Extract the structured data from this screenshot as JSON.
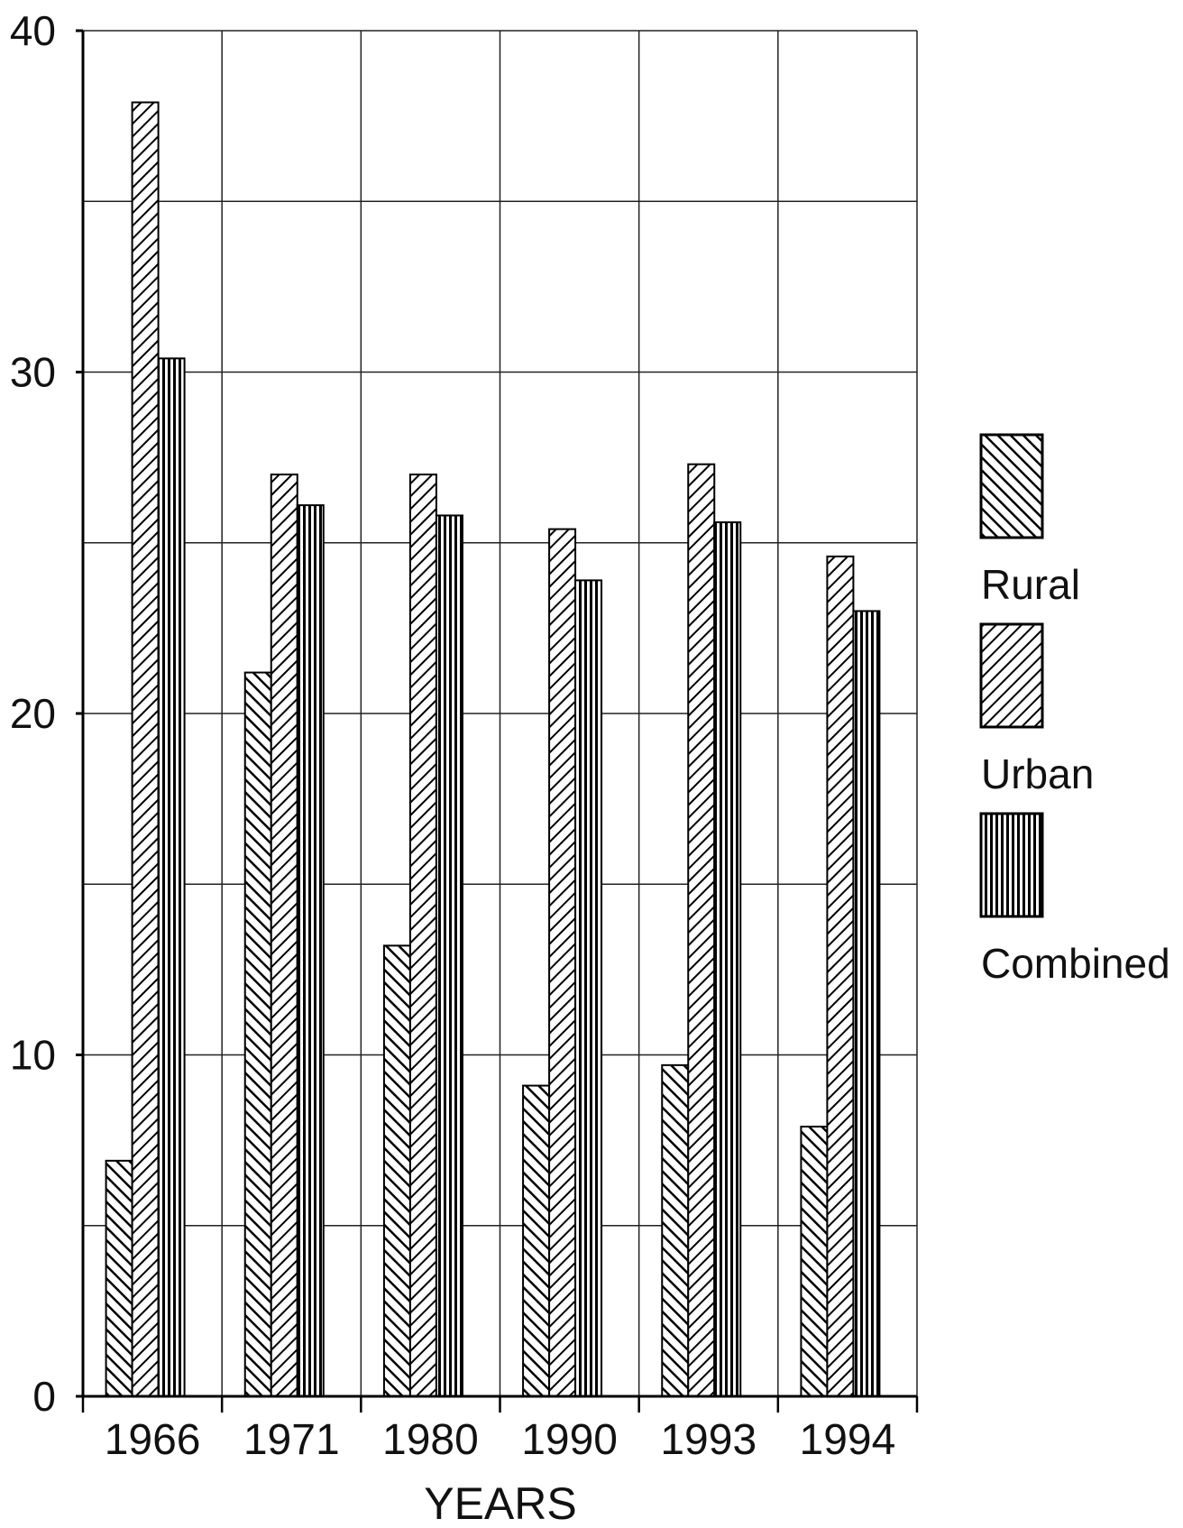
{
  "chart_data": {
    "type": "bar",
    "title": "",
    "xlabel": "YEARS",
    "ylabel": "",
    "ylim": [
      0,
      40
    ],
    "ytick_values": [
      0,
      10,
      20,
      30,
      40
    ],
    "ytick_labels": [
      "0",
      "10",
      "20",
      "30",
      "40"
    ],
    "categories": [
      "1966",
      "1971",
      "1980",
      "1990",
      "1993",
      "1994"
    ],
    "series": [
      {
        "name": "Rural",
        "values": [
          6.9,
          21.2,
          13.2,
          9.1,
          9.7,
          7.9
        ]
      },
      {
        "name": "Urban",
        "values": [
          37.9,
          27.0,
          27.0,
          25.4,
          27.3,
          24.6
        ]
      },
      {
        "name": "Combined",
        "values": [
          30.4,
          26.1,
          25.8,
          23.9,
          25.6,
          23.0
        ]
      }
    ],
    "grid": true,
    "legend_position": "right"
  },
  "series_styles": [
    {
      "pattern": "back-diagonal-hatch",
      "color": "#000000"
    },
    {
      "pattern": "forward-diagonal-hatch",
      "color": "#000000"
    },
    {
      "pattern": "vertical-lines",
      "color": "#000000"
    }
  ]
}
